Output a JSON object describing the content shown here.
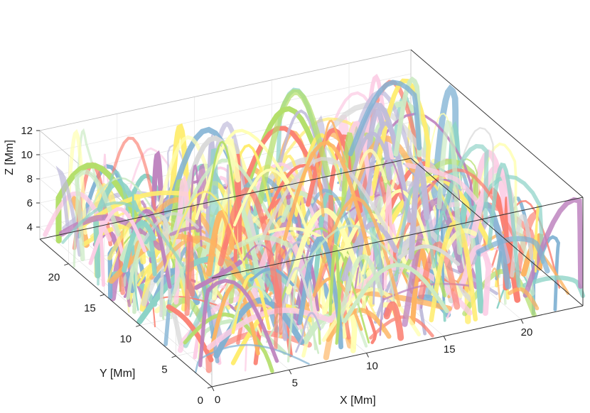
{
  "chart_data": {
    "type": "3d-line",
    "title": "",
    "xlabel": "X [Mm]",
    "ylabel": "Y [Mm]",
    "zlabel": "Z [Mm]",
    "xlim": [
      0,
      24
    ],
    "ylim": [
      0,
      24
    ],
    "zlim": [
      3,
      12
    ],
    "xticks": [
      0,
      5,
      10,
      15,
      20
    ],
    "yticks": [
      0,
      5,
      10,
      15,
      20
    ],
    "zticks": [
      4,
      6,
      8,
      10,
      12
    ],
    "grid": true,
    "legend": "none",
    "palette": [
      "#fb8072",
      "#80b1d3",
      "#fdb462",
      "#b3de69",
      "#fccde5",
      "#d9d9d9",
      "#bc80bd",
      "#ccebc5",
      "#ffed6f",
      "#8dd3c7",
      "#bebada",
      "#ffffb3"
    ],
    "description_of_content": "Hundreds of colored arched field-line tubes filling the volume"
  }
}
